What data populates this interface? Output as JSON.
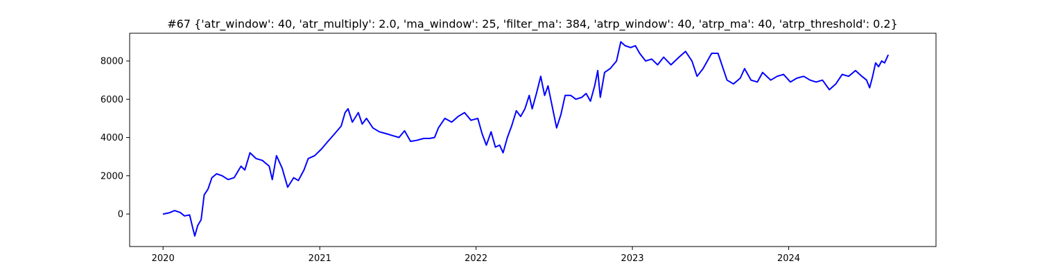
{
  "chart_data": {
    "type": "line",
    "title": "#67 {'atr_window': 40, 'atr_multiply': 2.0, 'ma_window': 25, 'filter_ma': 384, 'atrp_window': 40, 'atrp_ma': 40, 'atrp_threshold': 0.2}",
    "xlabel": "",
    "ylabel": "",
    "x_axis_type": "date",
    "xlim": [
      "2019-10-15",
      "2024-12-10"
    ],
    "ylim": [
      -1700,
      9450
    ],
    "grid": false,
    "x_ticks": [
      {
        "value": "2020-01-01",
        "label": "2020"
      },
      {
        "value": "2021-01-01",
        "label": "2021"
      },
      {
        "value": "2022-01-01",
        "label": "2022"
      },
      {
        "value": "2023-01-01",
        "label": "2023"
      },
      {
        "value": "2024-01-01",
        "label": "2024"
      }
    ],
    "y_ticks": [
      {
        "value": 0,
        "label": "0"
      },
      {
        "value": 2000,
        "label": "2000"
      },
      {
        "value": 4000,
        "label": "4000"
      },
      {
        "value": 6000,
        "label": "6000"
      },
      {
        "value": 8000,
        "label": "8000"
      }
    ],
    "series": [
      {
        "color": "#0000ff",
        "points": [
          [
            "2020-01-02",
            0
          ],
          [
            "2020-01-15",
            60
          ],
          [
            "2020-01-28",
            180
          ],
          [
            "2020-02-10",
            80
          ],
          [
            "2020-02-20",
            -100
          ],
          [
            "2020-03-03",
            -50
          ],
          [
            "2020-03-10",
            -700
          ],
          [
            "2020-03-15",
            -1150
          ],
          [
            "2020-03-22",
            -600
          ],
          [
            "2020-03-30",
            -300
          ],
          [
            "2020-04-06",
            1000
          ],
          [
            "2020-04-15",
            1300
          ],
          [
            "2020-04-24",
            1900
          ],
          [
            "2020-05-05",
            2100
          ],
          [
            "2020-05-18",
            2000
          ],
          [
            "2020-06-01",
            1800
          ],
          [
            "2020-06-15",
            1900
          ],
          [
            "2020-07-01",
            2500
          ],
          [
            "2020-07-10",
            2300
          ],
          [
            "2020-07-22",
            3200
          ],
          [
            "2020-08-05",
            2900
          ],
          [
            "2020-08-20",
            2800
          ],
          [
            "2020-09-05",
            2500
          ],
          [
            "2020-09-12",
            1800
          ],
          [
            "2020-09-22",
            3050
          ],
          [
            "2020-10-05",
            2400
          ],
          [
            "2020-10-18",
            1400
          ],
          [
            "2020-11-01",
            1900
          ],
          [
            "2020-11-12",
            1750
          ],
          [
            "2020-11-25",
            2300
          ],
          [
            "2020-12-05",
            2900
          ],
          [
            "2020-12-20",
            3050
          ],
          [
            "2021-01-05",
            3400
          ],
          [
            "2021-01-20",
            3800
          ],
          [
            "2021-02-05",
            4200
          ],
          [
            "2021-02-20",
            4600
          ],
          [
            "2021-03-01",
            5300
          ],
          [
            "2021-03-08",
            5500
          ],
          [
            "2021-03-18",
            4800
          ],
          [
            "2021-04-01",
            5300
          ],
          [
            "2021-04-10",
            4700
          ],
          [
            "2021-04-20",
            5000
          ],
          [
            "2021-05-05",
            4500
          ],
          [
            "2021-05-20",
            4300
          ],
          [
            "2021-06-05",
            4200
          ],
          [
            "2021-06-20",
            4100
          ],
          [
            "2021-07-05",
            4000
          ],
          [
            "2021-07-18",
            4350
          ],
          [
            "2021-08-01",
            3800
          ],
          [
            "2021-08-15",
            3850
          ],
          [
            "2021-09-01",
            3950
          ],
          [
            "2021-09-15",
            3950
          ],
          [
            "2021-09-26",
            4000
          ],
          [
            "2021-10-05",
            4500
          ],
          [
            "2021-10-20",
            5000
          ],
          [
            "2021-11-05",
            4800
          ],
          [
            "2021-11-20",
            5100
          ],
          [
            "2021-12-05",
            5300
          ],
          [
            "2021-12-20",
            4900
          ],
          [
            "2022-01-05",
            5000
          ],
          [
            "2022-01-15",
            4200
          ],
          [
            "2022-01-25",
            3600
          ],
          [
            "2022-02-05",
            4300
          ],
          [
            "2022-02-15",
            3500
          ],
          [
            "2022-02-25",
            3600
          ],
          [
            "2022-03-05",
            3200
          ],
          [
            "2022-03-15",
            4000
          ],
          [
            "2022-03-25",
            4600
          ],
          [
            "2022-04-05",
            5400
          ],
          [
            "2022-04-15",
            5100
          ],
          [
            "2022-04-25",
            5500
          ],
          [
            "2022-05-05",
            6200
          ],
          [
            "2022-05-12",
            5500
          ],
          [
            "2022-05-22",
            6300
          ],
          [
            "2022-06-01",
            7200
          ],
          [
            "2022-06-10",
            6200
          ],
          [
            "2022-06-18",
            6700
          ],
          [
            "2022-06-28",
            5600
          ],
          [
            "2022-07-08",
            4500
          ],
          [
            "2022-07-18",
            5200
          ],
          [
            "2022-07-28",
            6200
          ],
          [
            "2022-08-10",
            6200
          ],
          [
            "2022-08-22",
            6000
          ],
          [
            "2022-09-05",
            6100
          ],
          [
            "2022-09-15",
            6300
          ],
          [
            "2022-09-25",
            5900
          ],
          [
            "2022-10-05",
            6700
          ],
          [
            "2022-10-12",
            7500
          ],
          [
            "2022-10-18",
            6100
          ],
          [
            "2022-10-28",
            7400
          ],
          [
            "2022-11-10",
            7600
          ],
          [
            "2022-11-25",
            8000
          ],
          [
            "2022-12-05",
            9000
          ],
          [
            "2022-12-15",
            8800
          ],
          [
            "2022-12-28",
            8700
          ],
          [
            "2023-01-08",
            8800
          ],
          [
            "2023-01-18",
            8400
          ],
          [
            "2023-02-01",
            8000
          ],
          [
            "2023-02-15",
            8100
          ],
          [
            "2023-03-01",
            7800
          ],
          [
            "2023-03-15",
            8200
          ],
          [
            "2023-04-01",
            7800
          ],
          [
            "2023-04-20",
            8200
          ],
          [
            "2023-05-05",
            8500
          ],
          [
            "2023-05-20",
            8000
          ],
          [
            "2023-06-01",
            7200
          ],
          [
            "2023-06-15",
            7600
          ],
          [
            "2023-07-05",
            8400
          ],
          [
            "2023-07-20",
            8400
          ],
          [
            "2023-08-01",
            7600
          ],
          [
            "2023-08-10",
            7000
          ],
          [
            "2023-08-25",
            6800
          ],
          [
            "2023-09-10",
            7100
          ],
          [
            "2023-09-20",
            7600
          ],
          [
            "2023-10-05",
            7000
          ],
          [
            "2023-10-20",
            6900
          ],
          [
            "2023-11-01",
            7400
          ],
          [
            "2023-11-20",
            7000
          ],
          [
            "2023-12-05",
            7200
          ],
          [
            "2023-12-20",
            7300
          ],
          [
            "2024-01-05",
            6900
          ],
          [
            "2024-01-20",
            7100
          ],
          [
            "2024-02-05",
            7200
          ],
          [
            "2024-02-20",
            7000
          ],
          [
            "2024-03-05",
            6900
          ],
          [
            "2024-03-20",
            7000
          ],
          [
            "2024-04-05",
            6500
          ],
          [
            "2024-04-20",
            6800
          ],
          [
            "2024-05-05",
            7300
          ],
          [
            "2024-05-20",
            7200
          ],
          [
            "2024-06-05",
            7500
          ],
          [
            "2024-06-20",
            7200
          ],
          [
            "2024-07-01",
            7000
          ],
          [
            "2024-07-08",
            6600
          ],
          [
            "2024-07-15",
            7200
          ],
          [
            "2024-07-22",
            7900
          ],
          [
            "2024-07-29",
            7700
          ],
          [
            "2024-08-05",
            8000
          ],
          [
            "2024-08-12",
            7900
          ],
          [
            "2024-08-20",
            8300
          ]
        ]
      }
    ]
  }
}
